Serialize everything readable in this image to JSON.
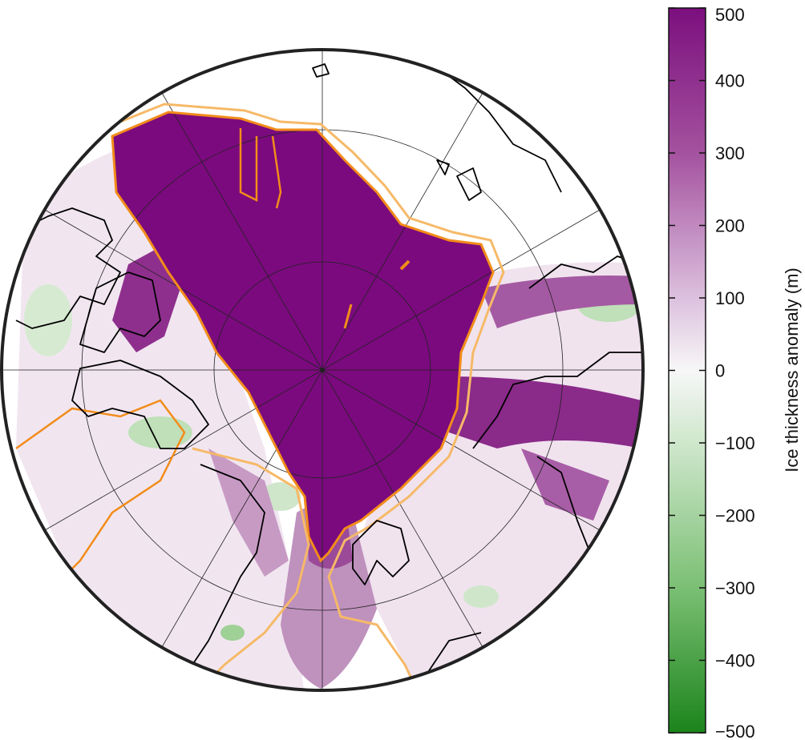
{
  "map": {
    "projection": "north-polar-stereographic",
    "field": "ice-thickness-anomaly",
    "contours": [
      {
        "name": "modern-coastline",
        "color": "#000000"
      },
      {
        "name": "ice-margin-dark",
        "color": "#f28c1a"
      },
      {
        "name": "ice-margin-light",
        "color": "#f6b968"
      }
    ]
  },
  "colorbar": {
    "title": "Ice thickness anomaly (m)",
    "min": -500,
    "max": 500,
    "ticks": [
      "500",
      "400",
      "300",
      "200",
      "100",
      "0",
      "−100",
      "−200",
      "−300",
      "−400",
      "−500"
    ],
    "colors": {
      "high": "#7b1a7e",
      "mid": "#f7f7f7",
      "low": "#1b7f1b"
    }
  }
}
